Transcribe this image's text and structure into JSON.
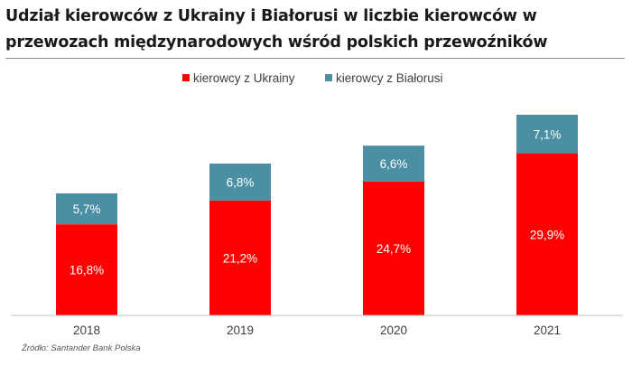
{
  "title": "Udział kierowców z Ukrainy i Białorusi w liczbie kierowców w przewozach międzynarodowych wśród polskich przewoźników",
  "source": "Źródło: Santander Bank Polska",
  "chart_data": {
    "type": "bar",
    "stacked": true,
    "categories": [
      "2018",
      "2019",
      "2020",
      "2021"
    ],
    "series": [
      {
        "name": "kierowcy z Ukrainy",
        "color": "#ff0000",
        "values": [
          16.8,
          21.2,
          24.7,
          29.9
        ],
        "labels": [
          "16,8%",
          "21,2%",
          "24,7%",
          "29,9%"
        ]
      },
      {
        "name": "kierowcy z Białorusi",
        "color": "#4a8fa3",
        "values": [
          5.7,
          6.8,
          6.6,
          7.1
        ],
        "labels": [
          "5,7%",
          "6,8%",
          "6,6%",
          "7,1%"
        ]
      }
    ],
    "legend": "top",
    "grid": false,
    "ylim": [
      0,
      40
    ]
  }
}
